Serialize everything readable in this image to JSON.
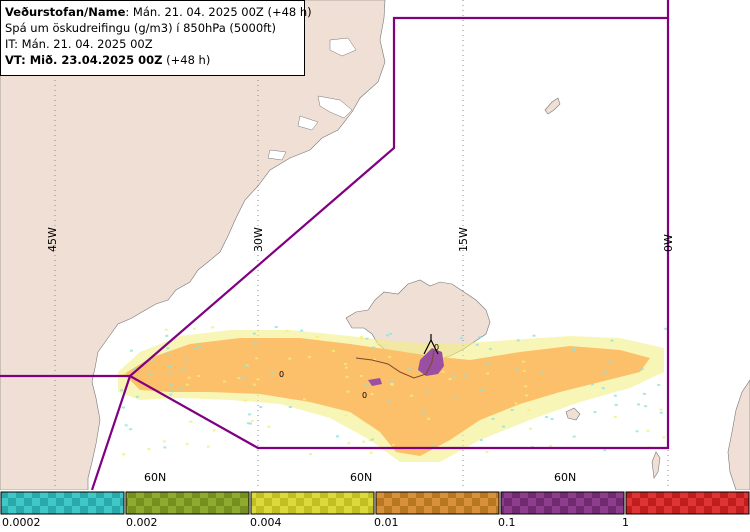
{
  "info": {
    "line1_bold": "Veðurstofan/Name",
    "line1_rest": ": Mán. 21. 04. 2025 00Z (+48 h)",
    "line2": "Spá um öskudreifingu (g/m3) í 850hPa (5000ft)",
    "line3": "IT: Mán. 21. 04. 2025 00Z",
    "line4_bold": "VT: Mið. 23.04.2025 00Z",
    "line4_rest": " (+48 h)"
  },
  "map": {
    "meridian_labels": [
      "45W",
      "30W",
      "15W",
      "0W"
    ],
    "parallel_labels": [
      "60N",
      "60N",
      "60N"
    ],
    "contour_labels": [
      "0",
      "0",
      "0"
    ],
    "colors": {
      "land": "#efdfd4",
      "sea": "#ffffff",
      "coast": "#777777",
      "boundary": "#800080",
      "ash_main": "#fcbf6a",
      "ash_fringe_yellow": "#f3ef7a",
      "ash_fringe_cyan": "#8fe3e0",
      "ash_purple": "#9a4fa3"
    }
  },
  "legend": {
    "tick_labels": [
      "0.0002",
      "0.002",
      "0.004",
      "0.01",
      "0.1",
      "1"
    ],
    "bins": [
      {
        "color": "#40c8c8",
        "color_dark": "#2aa9aa"
      },
      {
        "color": "#8faa2e",
        "color_dark": "#76901f"
      },
      {
        "color": "#dcd93a",
        "color_dark": "#c2bf22"
      },
      {
        "color": "#d8913a",
        "color_dark": "#b97722"
      },
      {
        "color": "#8e3d8e",
        "color_dark": "#702a70"
      },
      {
        "color": "#e03434",
        "color_dark": "#c01e1e"
      }
    ]
  }
}
